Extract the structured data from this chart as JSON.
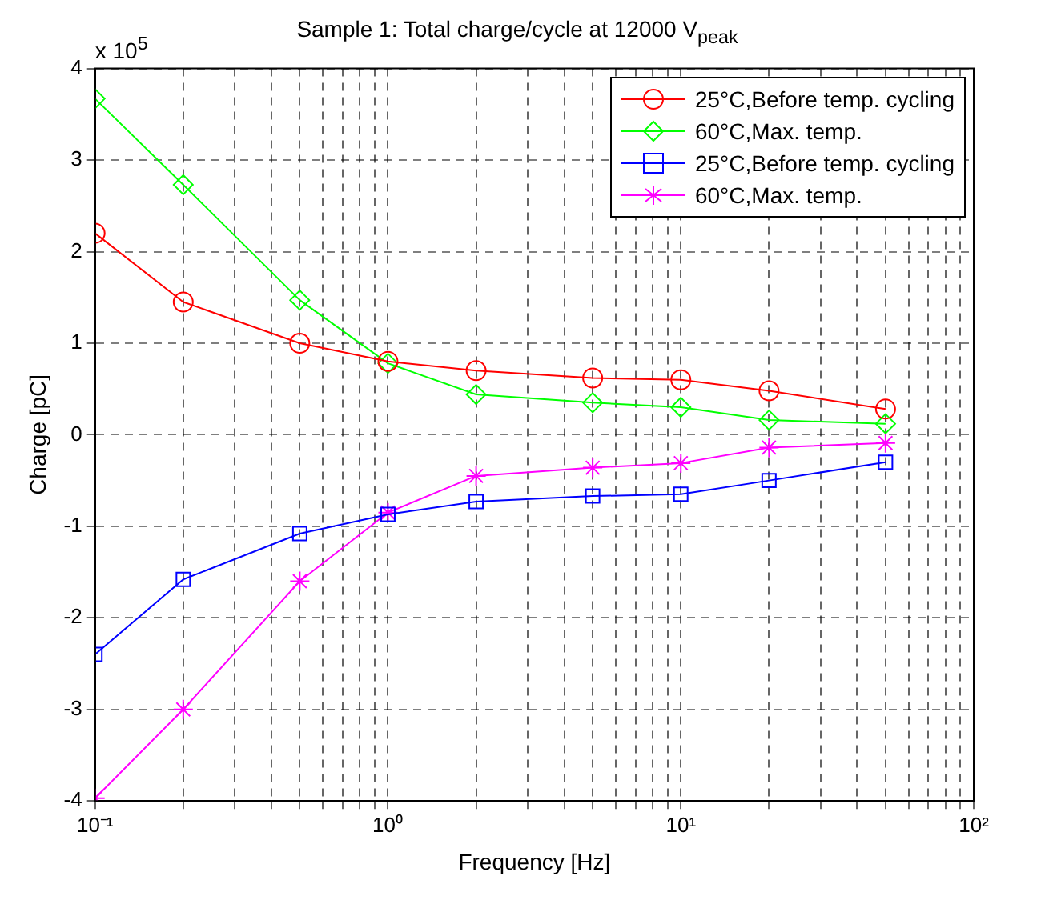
{
  "chart_data": {
    "type": "line",
    "title": "Sample 1: Total charge/cycle at 12000 V$_{peak}$",
    "xlabel": "Frequency [Hz]",
    "ylabel": "Charge [pC]",
    "annotations": [
      "x 10$^{5}$"
    ],
    "x": [
      0.1,
      0.2,
      0.5,
      1,
      2,
      5,
      10,
      20,
      50
    ],
    "series": [
      {
        "name": "25°C,Before temp. cycling",
        "color": "#ff0000",
        "marker": "circle",
        "values": [
          2.2,
          1.45,
          1.0,
          0.8,
          0.7,
          0.62,
          0.6,
          0.48,
          0.28
        ]
      },
      {
        "name": "60°C,Max. temp.",
        "color": "#00ff00",
        "marker": "diamond",
        "values": [
          3.67,
          2.73,
          1.47,
          0.78,
          0.44,
          0.35,
          0.3,
          0.16,
          0.12
        ]
      },
      {
        "name": "25°C,Before temp. cycling",
        "color": "#0000ff",
        "marker": "square",
        "values": [
          -2.4,
          -1.58,
          -1.08,
          -0.87,
          -0.73,
          -0.67,
          -0.65,
          -0.5,
          -0.3
        ]
      },
      {
        "name": "60°C,Max. temp.",
        "color": "#ff00ff",
        "marker": "cross",
        "values": [
          -3.97,
          -3.0,
          -1.6,
          -0.85,
          -0.45,
          -0.36,
          -0.31,
          -0.14,
          -0.09
        ]
      }
    ],
    "log": "x",
    "xlim": [
      0.1,
      100
    ],
    "xticks": [
      {
        "value": 0.1,
        "label": "10⁻¹"
      },
      {
        "value": 0.2,
        "label": null
      },
      {
        "value": 0.3,
        "label": null
      },
      {
        "value": 0.4,
        "label": null
      },
      {
        "value": 0.5,
        "label": null
      },
      {
        "value": 0.6,
        "label": null
      },
      {
        "value": 0.7,
        "label": null
      },
      {
        "value": 0.8,
        "label": null
      },
      {
        "value": 0.9,
        "label": null
      },
      {
        "value": 1,
        "label": "10⁰"
      },
      {
        "value": 2,
        "label": null
      },
      {
        "value": 3,
        "label": null
      },
      {
        "value": 4,
        "label": null
      },
      {
        "value": 5,
        "label": null
      },
      {
        "value": 6,
        "label": null
      },
      {
        "value": 7,
        "label": null
      },
      {
        "value": 8,
        "label": null
      },
      {
        "value": 9,
        "label": null
      },
      {
        "value": 10,
        "label": "10¹"
      },
      {
        "value": 20,
        "label": null
      },
      {
        "value": 30,
        "label": null
      },
      {
        "value": 40,
        "label": null
      },
      {
        "value": 50,
        "label": null
      },
      {
        "value": 60,
        "label": null
      },
      {
        "value": 70,
        "label": null
      },
      {
        "value": 80,
        "label": null
      },
      {
        "value": 90,
        "label": null
      },
      {
        "value": 100,
        "label": "10²"
      }
    ],
    "ylim": [
      -4,
      4
    ],
    "yticks": [
      -4,
      -3,
      -2,
      -1,
      0,
      1,
      2,
      3,
      4
    ],
    "grid": true,
    "legend": "top right",
    "line_style": "solid"
  }
}
